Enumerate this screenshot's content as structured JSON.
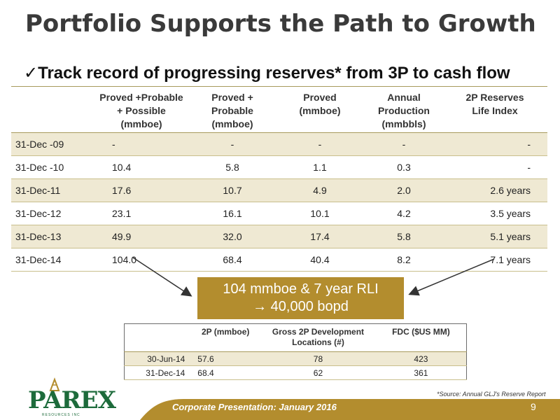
{
  "slide": {
    "title": "Portfolio Supports the Path to Growth",
    "subtitle": "✓Track record of progressing reserves* from 3P to cash flow"
  },
  "reserves_table": {
    "headers": [
      "",
      "Proved +Probable\n+ Possible\n(mmboe)",
      "Proved +\nProbable\n(mmboe)",
      "Proved\n(mmboe)",
      "Annual\nProduction\n(mmbbls)",
      "2P Reserves\nLife Index"
    ],
    "rows": [
      [
        "31-Dec -09",
        "-",
        "-",
        "-",
        "-",
        "-"
      ],
      [
        "31-Dec -10",
        "10.4",
        "5.8",
        "1.1",
        "0.3",
        "-"
      ],
      [
        "31-Dec-11",
        "17.6",
        "10.7",
        "4.9",
        "2.0",
        "2.6 years"
      ],
      [
        "31-Dec-12",
        "23.1",
        "16.1",
        "10.1",
        "4.2",
        "3.5 years"
      ],
      [
        "31-Dec-13",
        "49.9",
        "32.0",
        "17.4",
        "5.8",
        "5.1 years"
      ],
      [
        "31-Dec-14",
        "104.0",
        "68.4",
        "40.4",
        "8.2",
        "7.1 years"
      ]
    ]
  },
  "callout": {
    "line1": "104 mmboe & 7 year RLI",
    "line2": "→ 40,000 bopd"
  },
  "fdc_table": {
    "headers": [
      "",
      "2P (mmboe)",
      "Gross 2P Development\nLocations (#)",
      "FDC ($US MM)"
    ],
    "rows": [
      [
        "30-Jun-14",
        "57.6",
        "78",
        "423"
      ],
      [
        "31-Dec-14",
        "68.4",
        "62",
        "361"
      ]
    ]
  },
  "source_note": "*Source:  Annual GLJ's Reserve Report",
  "footer": {
    "text": "Corporate Presentation: January 2016",
    "page": "9"
  },
  "logo": {
    "word": "PAREX",
    "sub": "RESOURCES INC"
  },
  "colors": {
    "accent_gold": "#b38d2e",
    "row_band": "#efe9d3",
    "logo_green": "#1d6b3b"
  }
}
